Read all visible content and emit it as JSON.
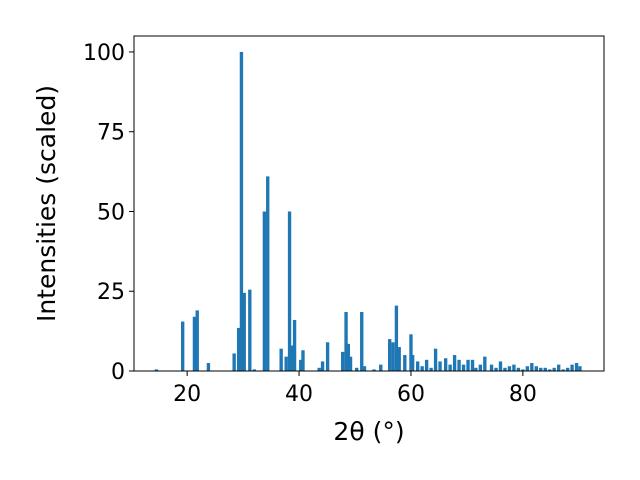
{
  "chart_data": {
    "type": "bar",
    "title": "",
    "xlabel": "2θ (°)",
    "ylabel": "Intensities (scaled)",
    "xlim": [
      10.5,
      94.5
    ],
    "ylim": [
      0,
      105
    ],
    "xticks": [
      20,
      40,
      60,
      80
    ],
    "yticks": [
      0,
      25,
      50,
      75,
      100
    ],
    "grid": false,
    "bar_width_data_units": 0.6,
    "color": "#1f77b4",
    "series": [
      {
        "x": [
          14.5,
          19.2,
          21.3,
          21.8,
          23.8,
          28.4,
          29.2,
          29.7,
          30.2,
          31.2,
          32.0,
          33.8,
          34.4,
          36.8,
          37.7,
          38.3,
          38.7,
          39.2,
          40.3,
          40.7,
          43.6,
          44.2,
          45.1,
          47.8,
          48.4,
          48.8,
          49.2,
          50.3,
          51.2,
          51.7,
          53.4,
          54.6,
          56.2,
          56.8,
          57.4,
          57.9,
          58.9,
          60.0,
          60.3,
          61.2,
          62.0,
          62.8,
          63.6,
          64.4,
          65.2,
          66.2,
          67.0,
          67.8,
          68.6,
          69.4,
          70.2,
          71.0,
          71.6,
          72.4,
          73.2,
          74.4,
          75.2,
          76.0,
          76.8,
          77.6,
          78.4,
          79.2,
          80.0,
          80.8,
          81.6,
          82.4,
          83.2,
          84.0,
          84.8,
          85.6,
          86.4,
          87.2,
          88.0,
          88.8,
          89.6,
          90.2
        ],
        "values": [
          0.5,
          15.5,
          17,
          19,
          2.5,
          5.5,
          13.5,
          100,
          24.5,
          25.5,
          0.5,
          50,
          61,
          7,
          4.5,
          50,
          8,
          16,
          3.5,
          6.5,
          1,
          3,
          9,
          6,
          18.5,
          8.5,
          4.5,
          1,
          18.5,
          1.5,
          0.5,
          2,
          10,
          9,
          20.5,
          7.5,
          5,
          11.5,
          5,
          3,
          1.5,
          3.5,
          1,
          7,
          3,
          4,
          2,
          5,
          3.5,
          2,
          3.5,
          3.5,
          1,
          2,
          4.5,
          2,
          1,
          3,
          1,
          1.5,
          2,
          1,
          0.5,
          1.5,
          2.5,
          1.5,
          1,
          1,
          0.5,
          1,
          2,
          0.5,
          1,
          2,
          2.5,
          1.5
        ]
      }
    ]
  }
}
